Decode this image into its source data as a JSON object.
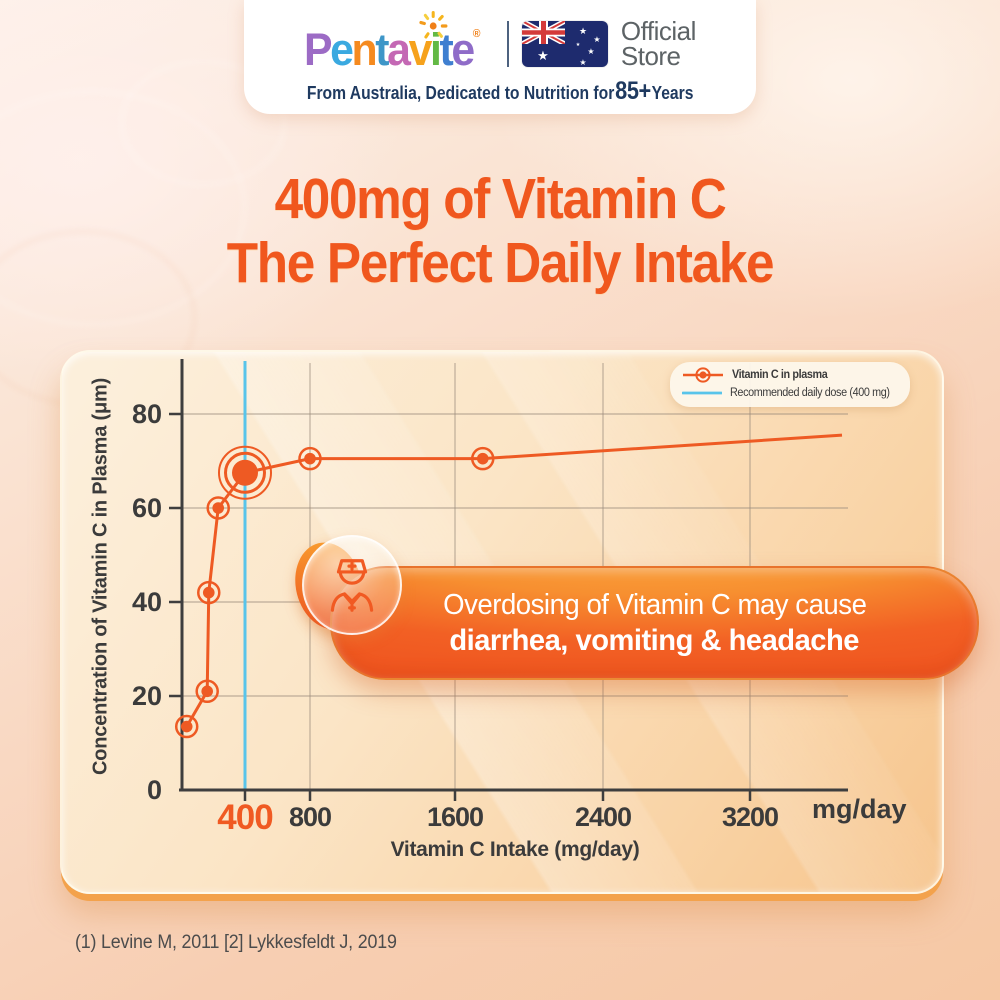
{
  "banner": {
    "logo": {
      "letters": [
        {
          "ch": "P",
          "color": "#9C6BC5"
        },
        {
          "ch": "e",
          "color": "#3AA9E0"
        },
        {
          "ch": "n",
          "color": "#F58A1F"
        },
        {
          "ch": "t",
          "color": "#3E96C8"
        },
        {
          "ch": "a",
          "color": "#C468B4"
        },
        {
          "ch": "v",
          "color": "#F6A21C"
        },
        {
          "ch": "i",
          "color": "#63B945"
        },
        {
          "ch": "t",
          "color": "#3F7FD0"
        },
        {
          "ch": "e",
          "color": "#8F6CC8"
        }
      ],
      "registered": "®"
    },
    "official_store": {
      "line1": "Official",
      "line2": "Store"
    },
    "tagline": {
      "prefix": "From Australia, Dedicated to Nutrition for ",
      "highlight": "85+",
      "suffix": " Years"
    }
  },
  "heading": {
    "line1": "400mg of Vitamin C",
    "line2": "The Perfect Daily Intake",
    "color": "#F0571E"
  },
  "chart_data": {
    "type": "line",
    "xlabel": "Vitamin C Intake (mg/day)",
    "ylabel": "Concentration of Vitamin C in Plasma (μm)",
    "x_unit": "mg/day",
    "x_ticks": [
      {
        "value": 400,
        "label": "400",
        "highlight": true
      },
      {
        "value": 800,
        "label": "800"
      },
      {
        "value": 1600,
        "label": "1600"
      },
      {
        "value": 2400,
        "label": "2400"
      },
      {
        "value": 3200,
        "label": "3200"
      }
    ],
    "y_ticks": [
      0,
      20,
      40,
      60,
      80
    ],
    "ylim": [
      0,
      90
    ],
    "grid": true,
    "legend_position": "top-right",
    "series": [
      {
        "name": "Vitamin C in plasma",
        "type": "line",
        "color": "#EE5A23",
        "points": [
          {
            "x": 30,
            "y": 13.5
          },
          {
            "x": 160,
            "y": 21
          },
          {
            "x": 170,
            "y": 42
          },
          {
            "x": 230,
            "y": 60
          },
          {
            "x": 400,
            "y": 67.5,
            "emphasis": true
          },
          {
            "x": 800,
            "y": 70.5
          },
          {
            "x": 1750,
            "y": 70.5
          },
          {
            "x": 3700,
            "y": 75.5,
            "marker": false
          }
        ]
      },
      {
        "name": "Recommended daily dose (400 mg)",
        "type": "vline",
        "color": "#58C4EA",
        "x": 400
      }
    ]
  },
  "callout": {
    "line1": "Overdosing of Vitamin C may cause",
    "line2": "diarrhea, vomiting & headache"
  },
  "footnote": "(1) Levine M, 2011 [2] Lykkesfeldt J, 2019"
}
